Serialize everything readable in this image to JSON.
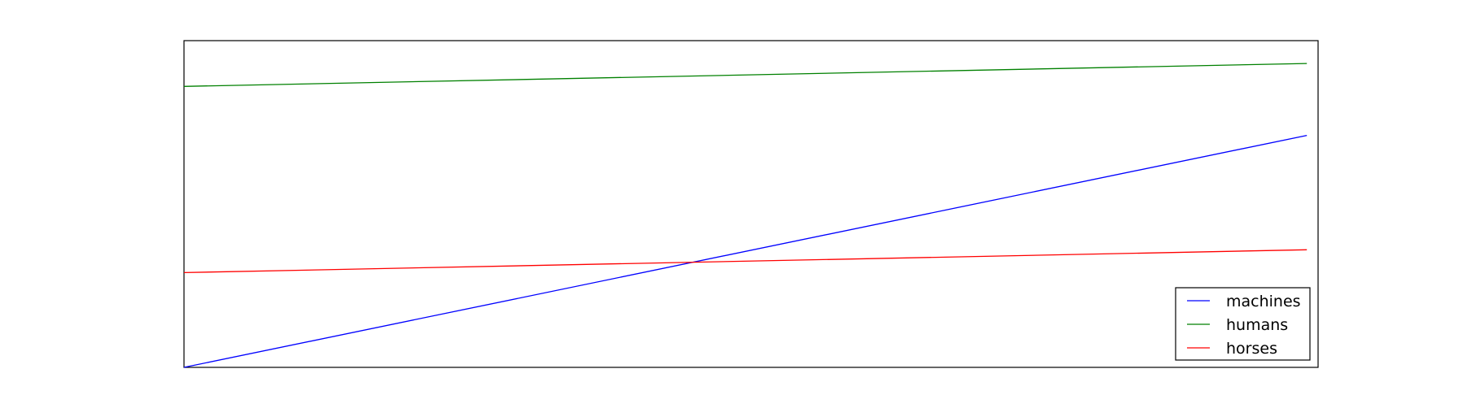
{
  "chart_data": {
    "type": "line",
    "title": "",
    "xlabel": "",
    "ylabel": "",
    "grid": false,
    "legend_position": "lower-right",
    "xlim": [
      0,
      1.01
    ],
    "ylim": [
      0,
      1
    ],
    "x": [
      0,
      1
    ],
    "series": [
      {
        "name": "machines",
        "color": "#0000ff",
        "values": [
          0.0,
          0.71
        ]
      },
      {
        "name": "humans",
        "color": "#008000",
        "values": [
          0.86,
          0.93
        ]
      },
      {
        "name": "horses",
        "color": "#ff0000",
        "values": [
          0.29,
          0.36
        ]
      }
    ]
  }
}
